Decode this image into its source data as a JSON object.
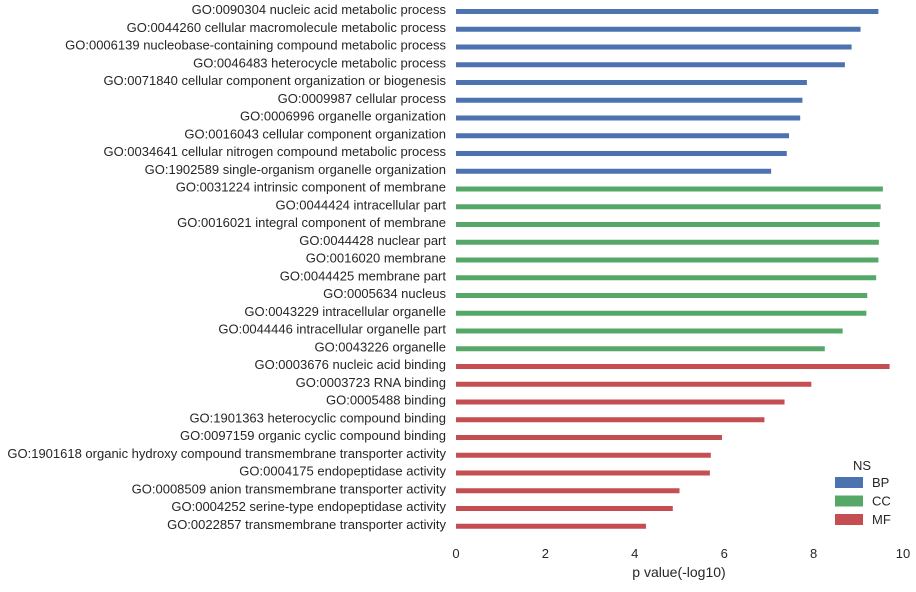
{
  "chart_data": {
    "type": "bar",
    "orientation": "horizontal",
    "xlabel": "p value(-log10)",
    "ylabel": "",
    "xlim": [
      0,
      10
    ],
    "xticks": [
      0,
      2,
      4,
      6,
      8,
      10
    ],
    "grid": false,
    "legend": {
      "title": "NS",
      "placement": "bottom-right",
      "entries": [
        {
          "name": "BP",
          "color": "#4C72B0"
        },
        {
          "name": "CC",
          "color": "#55A868"
        },
        {
          "name": "MF",
          "color": "#C44E52"
        }
      ]
    },
    "bars": [
      {
        "label": "GO:0090304 nucleic acid metabolic process",
        "value": 9.45,
        "group": "BP"
      },
      {
        "label": "GO:0044260 cellular macromolecule metabolic process",
        "value": 9.05,
        "group": "BP"
      },
      {
        "label": "GO:0006139 nucleobase-containing compound metabolic process",
        "value": 8.85,
        "group": "BP"
      },
      {
        "label": "GO:0046483 heterocycle metabolic process",
        "value": 8.7,
        "group": "BP"
      },
      {
        "label": "GO:0071840 cellular component organization or biogenesis",
        "value": 7.85,
        "group": "BP"
      },
      {
        "label": "GO:0009987 cellular process",
        "value": 7.75,
        "group": "BP"
      },
      {
        "label": "GO:0006996 organelle organization",
        "value": 7.7,
        "group": "BP"
      },
      {
        "label": "GO:0016043 cellular component organization",
        "value": 7.45,
        "group": "BP"
      },
      {
        "label": "GO:0034641 cellular nitrogen compound metabolic process",
        "value": 7.4,
        "group": "BP"
      },
      {
        "label": "GO:1902589 single-organism organelle organization",
        "value": 7.05,
        "group": "BP"
      },
      {
        "label": "GO:0031224 intrinsic component of membrane",
        "value": 9.55,
        "group": "CC"
      },
      {
        "label": "GO:0044424 intracellular part",
        "value": 9.5,
        "group": "CC"
      },
      {
        "label": "GO:0016021 integral component of membrane",
        "value": 9.48,
        "group": "CC"
      },
      {
        "label": "GO:0044428 nuclear part",
        "value": 9.46,
        "group": "CC"
      },
      {
        "label": "GO:0016020 membrane",
        "value": 9.45,
        "group": "CC"
      },
      {
        "label": "GO:0044425 membrane part",
        "value": 9.4,
        "group": "CC"
      },
      {
        "label": "GO:0005634 nucleus",
        "value": 9.2,
        "group": "CC"
      },
      {
        "label": "GO:0043229 intracellular organelle",
        "value": 9.18,
        "group": "CC"
      },
      {
        "label": "GO:0044446 intracellular organelle part",
        "value": 8.65,
        "group": "CC"
      },
      {
        "label": "GO:0043226 organelle",
        "value": 8.25,
        "group": "CC"
      },
      {
        "label": "GO:0003676 nucleic acid binding",
        "value": 9.7,
        "group": "MF"
      },
      {
        "label": "GO:0003723 RNA binding",
        "value": 7.95,
        "group": "MF"
      },
      {
        "label": "GO:0005488 binding",
        "value": 7.35,
        "group": "MF"
      },
      {
        "label": "GO:1901363 heterocyclic compound binding",
        "value": 6.9,
        "group": "MF"
      },
      {
        "label": "GO:0097159 organic cyclic compound binding",
        "value": 5.95,
        "group": "MF"
      },
      {
        "label": "GO:1901618 organic hydroxy compound transmembrane transporter activity",
        "value": 5.7,
        "group": "MF"
      },
      {
        "label": "GO:0004175 endopeptidase activity",
        "value": 5.68,
        "group": "MF"
      },
      {
        "label": "GO:0008509 anion transmembrane transporter activity",
        "value": 5.0,
        "group": "MF"
      },
      {
        "label": "GO:0004252 serine-type endopeptidase activity",
        "value": 4.85,
        "group": "MF"
      },
      {
        "label": "GO:0022857 transmembrane transporter activity",
        "value": 4.25,
        "group": "MF"
      }
    ]
  }
}
